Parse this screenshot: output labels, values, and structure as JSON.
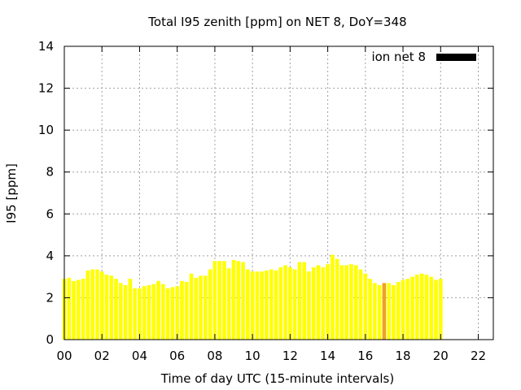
{
  "chart_data": {
    "type": "bar",
    "title": "Total I95 zenith [ppm] on NET 8, DoY=348",
    "xlabel": "Time of day UTC (15-minute intervals)",
    "ylabel": "I95 [ppm]",
    "xlim": [
      0,
      22.8
    ],
    "ylim": [
      0,
      14
    ],
    "xticks": [
      0,
      2,
      4,
      6,
      8,
      10,
      12,
      14,
      16,
      18,
      20,
      22
    ],
    "xtick_labels": [
      "00",
      "02",
      "04",
      "06",
      "08",
      "10",
      "12",
      "14",
      "16",
      "18",
      "20",
      "22"
    ],
    "yticks": [
      0,
      2,
      4,
      6,
      8,
      10,
      12,
      14
    ],
    "ytick_labels": [
      "0",
      "2",
      "4",
      "6",
      "8",
      "10",
      "12",
      "14"
    ],
    "grid": true,
    "legend_position": "top-right",
    "legend_label": "ion net 8",
    "bar_width_hours": 0.2,
    "bar_color": "#ffff00",
    "highlight_color": "#f0a020",
    "legend_color": "#000000",
    "highlight_index": 68,
    "series": [
      {
        "values": [
          2.9,
          2.95,
          2.8,
          2.85,
          2.9,
          3.3,
          3.35,
          3.35,
          3.25,
          3.1,
          3.05,
          2.9,
          2.7,
          2.6,
          2.9,
          2.45,
          2.45,
          2.55,
          2.6,
          2.65,
          2.8,
          2.65,
          2.45,
          2.5,
          2.55,
          2.8,
          2.75,
          3.15,
          2.95,
          3.05,
          3.05,
          3.35,
          3.75,
          3.75,
          3.75,
          3.4,
          3.8,
          3.75,
          3.7,
          3.35,
          3.25,
          3.25,
          3.25,
          3.3,
          3.35,
          3.3,
          3.45,
          3.55,
          3.45,
          3.35,
          3.7,
          3.7,
          3.25,
          3.45,
          3.55,
          3.45,
          3.6,
          4.05,
          3.85,
          3.55,
          3.55,
          3.6,
          3.55,
          3.35,
          3.15,
          2.9,
          2.7,
          2.6,
          2.7,
          2.7,
          2.6,
          2.75,
          2.85,
          2.9,
          3.0,
          3.1,
          3.15,
          3.1,
          3.0,
          2.85,
          2.9
        ]
      }
    ]
  }
}
